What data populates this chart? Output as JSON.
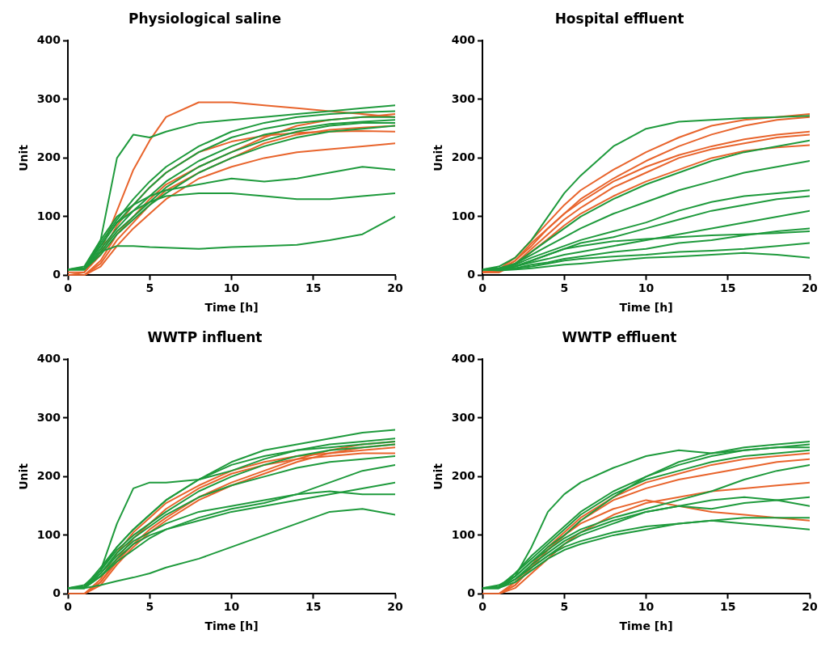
{
  "chart_data": [
    {
      "type": "line",
      "title": "Physiological saline",
      "xlabel": "Time [h]",
      "ylabel": "Unit",
      "marker": "none",
      "x": [
        0,
        1,
        2,
        3,
        4,
        5,
        6,
        8,
        10,
        12,
        14,
        16,
        18,
        20
      ],
      "xlim": [
        0,
        20
      ],
      "ylim": [
        0,
        400
      ],
      "xticks": [
        0,
        5,
        10,
        15,
        20
      ],
      "yticks": [
        0,
        100,
        200,
        300,
        400
      ],
      "series": [
        {
          "color": "#1e9a3c",
          "values": [
            10,
            10,
            60,
            200,
            240,
            235,
            245,
            260,
            265,
            270,
            275,
            280,
            285,
            290
          ]
        },
        {
          "color": "#1e9a3c",
          "values": [
            10,
            10,
            40,
            50,
            50,
            48,
            47,
            45,
            48,
            50,
            52,
            60,
            70,
            100
          ]
        },
        {
          "color": "#1e9a3c",
          "values": [
            10,
            12,
            50,
            90,
            110,
            125,
            135,
            140,
            140,
            135,
            130,
            130,
            135,
            140
          ]
        },
        {
          "color": "#1e9a3c",
          "values": [
            10,
            15,
            60,
            100,
            120,
            135,
            145,
            155,
            165,
            160,
            165,
            175,
            185,
            180
          ]
        },
        {
          "color": "#1e9a3c",
          "values": [
            10,
            12,
            50,
            90,
            120,
            150,
            175,
            210,
            235,
            250,
            260,
            265,
            270,
            270
          ]
        },
        {
          "color": "#1e9a3c",
          "values": [
            10,
            10,
            45,
            80,
            110,
            135,
            160,
            195,
            220,
            240,
            250,
            258,
            262,
            265
          ]
        },
        {
          "color": "#1e9a3c",
          "values": [
            10,
            10,
            40,
            75,
            100,
            125,
            150,
            185,
            210,
            230,
            245,
            255,
            260,
            260
          ]
        },
        {
          "color": "#1e9a3c",
          "values": [
            10,
            12,
            55,
            95,
            130,
            160,
            185,
            220,
            245,
            260,
            270,
            275,
            278,
            280
          ]
        },
        {
          "color": "#1e9a3c",
          "values": [
            10,
            10,
            35,
            70,
            95,
            120,
            140,
            175,
            200,
            220,
            235,
            245,
            250,
            255
          ]
        },
        {
          "color": "#e8642c",
          "values": [
            0,
            5,
            40,
            110,
            180,
            230,
            270,
            295,
            295,
            290,
            285,
            280,
            275,
            270
          ]
        },
        {
          "color": "#e8642c",
          "values": [
            0,
            0,
            20,
            60,
            90,
            120,
            145,
            175,
            200,
            225,
            240,
            248,
            252,
            255
          ]
        },
        {
          "color": "#e8642c",
          "values": [
            0,
            0,
            25,
            70,
            100,
            130,
            155,
            185,
            210,
            235,
            255,
            265,
            270,
            275
          ]
        },
        {
          "color": "#e8642c",
          "values": [
            0,
            0,
            15,
            50,
            80,
            105,
            130,
            165,
            185,
            200,
            210,
            215,
            220,
            225
          ]
        },
        {
          "color": "#e8642c",
          "values": [
            5,
            5,
            35,
            85,
            120,
            150,
            175,
            210,
            228,
            238,
            243,
            245,
            246,
            245
          ]
        }
      ]
    },
    {
      "type": "line",
      "title": "Hospital effluent",
      "xlabel": "Time [h]",
      "ylabel": "Unit",
      "marker": "none",
      "x": [
        0,
        1,
        2,
        3,
        4,
        5,
        6,
        8,
        10,
        12,
        14,
        16,
        18,
        20
      ],
      "xlim": [
        0,
        20
      ],
      "ylim": [
        0,
        400
      ],
      "xticks": [
        0,
        5,
        10,
        15,
        20
      ],
      "yticks": [
        0,
        100,
        200,
        300,
        400
      ],
      "series": [
        {
          "color": "#1e9a3c",
          "values": [
            10,
            15,
            30,
            60,
            100,
            140,
            170,
            220,
            250,
            262,
            265,
            268,
            270,
            272
          ]
        },
        {
          "color": "#1e9a3c",
          "values": [
            10,
            12,
            20,
            35,
            50,
            65,
            80,
            105,
            125,
            145,
            160,
            175,
            185,
            195
          ]
        },
        {
          "color": "#1e9a3c",
          "values": [
            10,
            10,
            18,
            30,
            40,
            50,
            60,
            75,
            90,
            110,
            125,
            135,
            140,
            145
          ]
        },
        {
          "color": "#1e9a3c",
          "values": [
            10,
            10,
            15,
            25,
            35,
            45,
            55,
            65,
            80,
            95,
            110,
            120,
            130,
            135
          ]
        },
        {
          "color": "#1e9a3c",
          "values": [
            10,
            10,
            15,
            22,
            28,
            35,
            40,
            50,
            60,
            70,
            80,
            90,
            100,
            110
          ]
        },
        {
          "color": "#1e9a3c",
          "values": [
            10,
            10,
            12,
            18,
            22,
            28,
            32,
            40,
            45,
            55,
            60,
            68,
            75,
            80
          ]
        },
        {
          "color": "#1e9a3c",
          "values": [
            10,
            10,
            12,
            15,
            20,
            25,
            28,
            32,
            35,
            40,
            42,
            45,
            50,
            55
          ]
        },
        {
          "color": "#1e9a3c",
          "values": [
            10,
            8,
            10,
            12,
            15,
            18,
            20,
            25,
            30,
            32,
            35,
            38,
            35,
            30
          ]
        },
        {
          "color": "#1e9a3c",
          "values": [
            10,
            10,
            20,
            40,
            60,
            80,
            100,
            130,
            155,
            175,
            195,
            210,
            220,
            230
          ]
        },
        {
          "color": "#1e9a3c",
          "values": [
            10,
            12,
            15,
            25,
            35,
            45,
            50,
            58,
            62,
            65,
            68,
            70,
            72,
            75
          ]
        },
        {
          "color": "#e8642c",
          "values": [
            5,
            10,
            30,
            60,
            90,
            120,
            145,
            180,
            210,
            235,
            255,
            265,
            270,
            275
          ]
        },
        {
          "color": "#e8642c",
          "values": [
            5,
            8,
            25,
            50,
            80,
            105,
            130,
            165,
            195,
            220,
            240,
            255,
            265,
            270
          ]
        },
        {
          "color": "#e8642c",
          "values": [
            5,
            5,
            20,
            45,
            70,
            95,
            115,
            150,
            175,
            200,
            215,
            225,
            235,
            240
          ]
        },
        {
          "color": "#e8642c",
          "values": [
            5,
            8,
            25,
            55,
            80,
            105,
            125,
            160,
            185,
            205,
            220,
            232,
            240,
            245
          ]
        },
        {
          "color": "#e8642c",
          "values": [
            5,
            5,
            18,
            40,
            62,
            85,
            105,
            135,
            160,
            180,
            200,
            212,
            218,
            222
          ]
        }
      ]
    },
    {
      "type": "line",
      "title": "WWTP influent",
      "xlabel": "Time [h]",
      "ylabel": "Unit",
      "marker": "none",
      "x": [
        0,
        1,
        2,
        3,
        4,
        5,
        6,
        8,
        10,
        12,
        14,
        16,
        18,
        20
      ],
      "xlim": [
        0,
        20
      ],
      "ylim": [
        0,
        400
      ],
      "xticks": [
        0,
        5,
        10,
        15,
        20
      ],
      "yticks": [
        0,
        100,
        200,
        300,
        400
      ],
      "series": [
        {
          "color": "#1e9a3c",
          "values": [
            10,
            15,
            40,
            120,
            180,
            190,
            190,
            195,
            210,
            230,
            245,
            255,
            260,
            265
          ]
        },
        {
          "color": "#1e9a3c",
          "values": [
            10,
            12,
            45,
            80,
            110,
            135,
            160,
            195,
            225,
            245,
            255,
            265,
            275,
            280
          ]
        },
        {
          "color": "#1e9a3c",
          "values": [
            10,
            12,
            40,
            75,
            100,
            120,
            140,
            175,
            200,
            220,
            235,
            245,
            250,
            255
          ]
        },
        {
          "color": "#1e9a3c",
          "values": [
            10,
            10,
            35,
            65,
            90,
            105,
            120,
            140,
            150,
            160,
            170,
            175,
            170,
            170
          ]
        },
        {
          "color": "#1e9a3c",
          "values": [
            10,
            10,
            15,
            22,
            28,
            35,
            45,
            60,
            80,
            100,
            120,
            140,
            145,
            135
          ]
        },
        {
          "color": "#1e9a3c",
          "values": [
            10,
            10,
            30,
            60,
            85,
            100,
            110,
            125,
            140,
            150,
            160,
            170,
            180,
            190
          ]
        },
        {
          "color": "#1e9a3c",
          "values": [
            10,
            12,
            40,
            80,
            110,
            135,
            160,
            195,
            220,
            235,
            245,
            250,
            255,
            260
          ]
        },
        {
          "color": "#1e9a3c",
          "values": [
            10,
            10,
            35,
            70,
            95,
            115,
            135,
            165,
            185,
            200,
            215,
            225,
            230,
            235
          ]
        },
        {
          "color": "#1e9a3c",
          "values": [
            10,
            10,
            30,
            55,
            75,
            95,
            110,
            130,
            145,
            155,
            170,
            190,
            210,
            220
          ]
        },
        {
          "color": "#e8642c",
          "values": [
            0,
            0,
            25,
            70,
            105,
            130,
            155,
            185,
            210,
            225,
            235,
            240,
            245,
            250
          ]
        },
        {
          "color": "#e8642c",
          "values": [
            0,
            0,
            15,
            50,
            80,
            105,
            125,
            160,
            185,
            205,
            225,
            240,
            250,
            255
          ]
        },
        {
          "color": "#e8642c",
          "values": [
            0,
            0,
            20,
            60,
            95,
            120,
            145,
            180,
            205,
            220,
            230,
            235,
            240,
            240
          ]
        },
        {
          "color": "#e8642c",
          "values": [
            0,
            0,
            20,
            55,
            85,
            110,
            130,
            165,
            190,
            210,
            230,
            245,
            255,
            260
          ]
        }
      ]
    },
    {
      "type": "line",
      "title": "WWTP effluent",
      "xlabel": "Time [h]",
      "ylabel": "Unit",
      "marker": "none",
      "x": [
        0,
        1,
        2,
        3,
        4,
        5,
        6,
        8,
        10,
        12,
        14,
        16,
        18,
        20
      ],
      "xlim": [
        0,
        20
      ],
      "ylim": [
        0,
        400
      ],
      "xticks": [
        0,
        5,
        10,
        15,
        20
      ],
      "yticks": [
        0,
        100,
        200,
        300,
        400
      ],
      "series": [
        {
          "color": "#1e9a3c",
          "values": [
            10,
            15,
            30,
            80,
            140,
            170,
            190,
            215,
            235,
            245,
            240,
            245,
            250,
            255
          ]
        },
        {
          "color": "#1e9a3c",
          "values": [
            10,
            12,
            30,
            55,
            80,
            100,
            125,
            165,
            200,
            225,
            240,
            250,
            255,
            260
          ]
        },
        {
          "color": "#1e9a3c",
          "values": [
            10,
            10,
            25,
            50,
            70,
            90,
            105,
            125,
            140,
            150,
            145,
            155,
            160,
            165
          ]
        },
        {
          "color": "#1e9a3c",
          "values": [
            10,
            10,
            25,
            45,
            65,
            80,
            90,
            105,
            115,
            120,
            125,
            120,
            115,
            110
          ]
        },
        {
          "color": "#1e9a3c",
          "values": [
            10,
            12,
            35,
            65,
            90,
            115,
            140,
            175,
            200,
            220,
            235,
            245,
            250,
            250
          ]
        },
        {
          "color": "#1e9a3c",
          "values": [
            10,
            10,
            30,
            55,
            75,
            95,
            110,
            130,
            145,
            160,
            175,
            195,
            210,
            220
          ]
        },
        {
          "color": "#1e9a3c",
          "values": [
            10,
            10,
            20,
            40,
            60,
            75,
            85,
            100,
            110,
            120,
            125,
            130,
            130,
            130
          ]
        },
        {
          "color": "#1e9a3c",
          "values": [
            10,
            12,
            35,
            60,
            85,
            110,
            135,
            170,
            195,
            210,
            225,
            235,
            240,
            245
          ]
        },
        {
          "color": "#1e9a3c",
          "values": [
            10,
            10,
            25,
            45,
            65,
            85,
            100,
            120,
            140,
            150,
            160,
            165,
            160,
            150
          ]
        },
        {
          "color": "#e8642c",
          "values": [
            0,
            0,
            15,
            45,
            75,
            100,
            120,
            145,
            160,
            150,
            140,
            135,
            130,
            125
          ]
        },
        {
          "color": "#e8642c",
          "values": [
            0,
            0,
            20,
            50,
            80,
            105,
            130,
            165,
            190,
            205,
            220,
            230,
            235,
            240
          ]
        },
        {
          "color": "#e8642c",
          "values": [
            0,
            0,
            15,
            45,
            75,
            100,
            125,
            160,
            180,
            195,
            205,
            215,
            225,
            230
          ]
        },
        {
          "color": "#e8642c",
          "values": [
            0,
            0,
            10,
            35,
            60,
            85,
            105,
            135,
            155,
            165,
            175,
            180,
            185,
            190
          ]
        }
      ]
    }
  ]
}
